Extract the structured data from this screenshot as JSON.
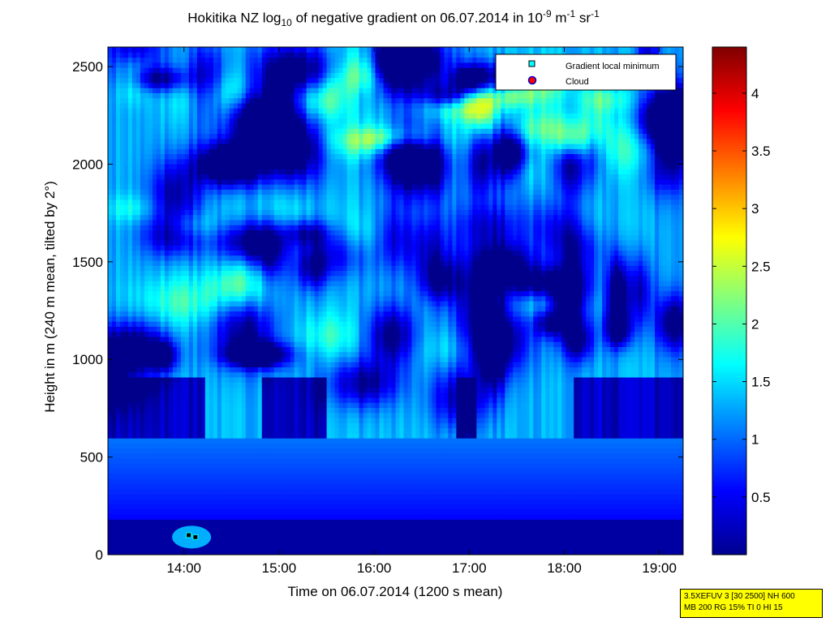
{
  "chart_data": {
    "type": "heatmap",
    "title_parts": {
      "prefix": "Hokitika NZ log",
      "sub": "10",
      "middle": " of negative gradient on 06.07.2014 in 10",
      "exp1": "-9",
      "unit1": " m",
      "exp2": "-1",
      "unit2": " sr",
      "exp3": "-1"
    },
    "xlabel": "Time on 06.07.2014 (1200 s mean)",
    "ylabel": "Height in m (240 m mean, tilted by 2°)",
    "x_range_hours": [
      13.2,
      19.25
    ],
    "x_ticks": [
      {
        "label": "14:00",
        "value": 14
      },
      {
        "label": "15:00",
        "value": 15
      },
      {
        "label": "16:00",
        "value": 16
      },
      {
        "label": "17:00",
        "value": 17
      },
      {
        "label": "18:00",
        "value": 18
      },
      {
        "label": "19:00",
        "value": 19
      }
    ],
    "y_range": [
      0,
      2600
    ],
    "y_ticks": [
      0,
      500,
      1000,
      1500,
      2000,
      2500
    ],
    "colorbar": {
      "colormap": "jet",
      "range": [
        0,
        4.4
      ],
      "ticks": [
        0.5,
        1,
        1.5,
        2,
        2.5,
        3,
        3.5,
        4
      ]
    },
    "legend": {
      "position": "top-right",
      "entries": [
        {
          "label": "Gradient local minimum",
          "marker": "square",
          "color": "#00ffff"
        },
        {
          "label": "Cloud",
          "marker": "circle",
          "color": "#ff0000"
        }
      ]
    },
    "gradient_minima": [
      {
        "time": 14.05,
        "height": 100
      },
      {
        "time": 14.12,
        "height": 90
      }
    ],
    "features": {
      "near_ground_low_band_m": [
        0,
        180
      ],
      "mid_band_m": [
        180,
        600
      ],
      "dark_low_layer_m": [
        560,
        900
      ],
      "bright_upper_layer_m": [
        2150,
        2450
      ],
      "general_value": 1.3
    }
  },
  "info_box": {
    "line1": "3.5XEFUV 3 [30 2500] NH 600",
    "line2": "MB 200 RG 15% TI 0 HI 15"
  }
}
